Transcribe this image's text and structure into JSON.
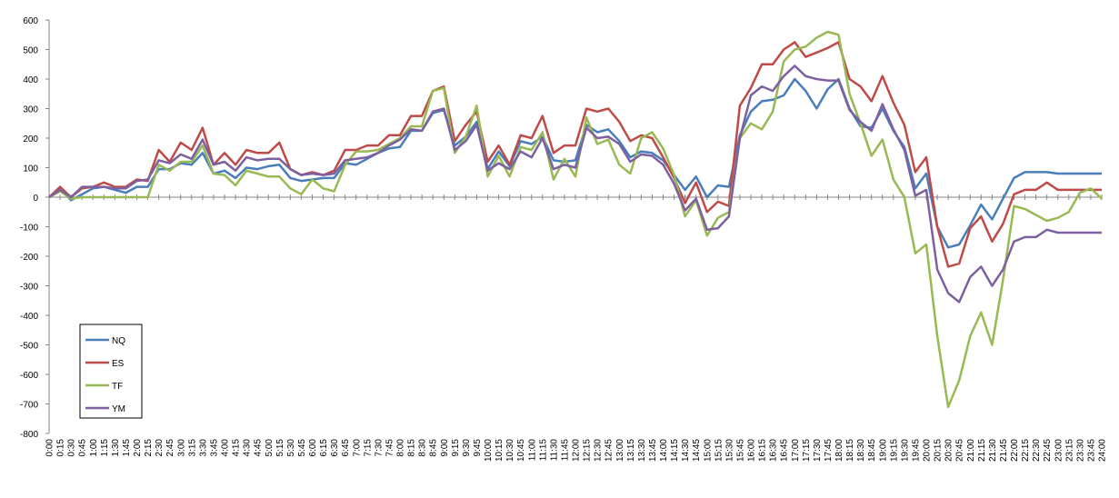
{
  "chart_data": {
    "type": "line",
    "categories": [
      "0:00",
      "0:15",
      "0:30",
      "0:45",
      "1:00",
      "1:15",
      "1:30",
      "1:45",
      "2:00",
      "2:15",
      "2:30",
      "2:45",
      "3:00",
      "3:15",
      "3:30",
      "3:45",
      "4:00",
      "4:15",
      "4:30",
      "4:45",
      "5:00",
      "5:15",
      "5:30",
      "5:45",
      "6:00",
      "6:15",
      "6:30",
      "6:45",
      "7:00",
      "7:15",
      "7:30",
      "7:45",
      "8:00",
      "8:15",
      "8:30",
      "8:45",
      "9:00",
      "9:15",
      "9:30",
      "9:45",
      "10:00",
      "10:15",
      "10:30",
      "10:45",
      "11:00",
      "11:15",
      "11:30",
      "11:45",
      "12:00",
      "12:15",
      "12:30",
      "12:45",
      "13:00",
      "13:15",
      "13:30",
      "13:45",
      "14:00",
      "14:15",
      "14:30",
      "14:45",
      "15:00",
      "15:15",
      "15:30",
      "15:45",
      "16:00",
      "16:15",
      "16:30",
      "16:45",
      "17:00",
      "17:15",
      "17:30",
      "17:45",
      "18:00",
      "18:15",
      "18:30",
      "18:45",
      "19:00",
      "19:15",
      "19:30",
      "19:45",
      "20:00",
      "20:15",
      "20:30",
      "20:45",
      "21:00",
      "21:15",
      "21:30",
      "21:45",
      "22:00",
      "22:15",
      "22:30",
      "22:45",
      "23:00",
      "23:15",
      "23:30",
      "23:45",
      "24:00"
    ],
    "series": [
      {
        "name": "NQ",
        "color": "#4a7ebb",
        "values": [
          0,
          30,
          -10,
          10,
          30,
          35,
          25,
          15,
          35,
          35,
          95,
          95,
          115,
          110,
          150,
          80,
          90,
          65,
          100,
          95,
          105,
          110,
          65,
          55,
          60,
          65,
          65,
          115,
          110,
          130,
          150,
          165,
          170,
          225,
          225,
          285,
          295,
          175,
          205,
          255,
          95,
          155,
          105,
          190,
          180,
          205,
          125,
          120,
          125,
          245,
          220,
          230,
          190,
          135,
          155,
          150,
          125,
          75,
          25,
          70,
          0,
          40,
          35,
          210,
          290,
          325,
          330,
          345,
          400,
          360,
          300,
          365,
          400,
          300,
          240,
          235,
          300,
          225,
          170,
          30,
          80,
          -100,
          -170,
          -160,
          -95,
          -25,
          -75,
          -5,
          65,
          85,
          85,
          85,
          80,
          80,
          80,
          80,
          80
        ]
      },
      {
        "name": "ES",
        "color": "#be4b48",
        "values": [
          0,
          35,
          0,
          30,
          35,
          50,
          35,
          35,
          60,
          55,
          160,
          120,
          185,
          160,
          235,
          110,
          150,
          110,
          160,
          150,
          150,
          185,
          95,
          75,
          85,
          75,
          90,
          160,
          160,
          175,
          175,
          210,
          210,
          275,
          275,
          360,
          375,
          190,
          245,
          290,
          120,
          175,
          110,
          210,
          200,
          275,
          150,
          175,
          175,
          300,
          290,
          300,
          255,
          190,
          210,
          200,
          135,
          65,
          -20,
          50,
          -50,
          -15,
          -30,
          310,
          370,
          450,
          450,
          500,
          525,
          475,
          490,
          505,
          525,
          400,
          375,
          325,
          410,
          320,
          245,
          85,
          135,
          -100,
          -235,
          -225,
          -105,
          -65,
          -150,
          -90,
          10,
          25,
          25,
          50,
          25,
          25,
          25,
          25,
          25
        ]
      },
      {
        "name": "TF",
        "color": "#98b954",
        "values": [
          0,
          20,
          -5,
          0,
          0,
          0,
          0,
          0,
          0,
          0,
          110,
          90,
          120,
          120,
          175,
          80,
          75,
          40,
          90,
          80,
          70,
          70,
          30,
          10,
          60,
          30,
          20,
          110,
          155,
          155,
          160,
          180,
          200,
          240,
          240,
          360,
          370,
          150,
          205,
          310,
          70,
          140,
          70,
          170,
          160,
          220,
          60,
          130,
          70,
          270,
          180,
          195,
          110,
          80,
          200,
          220,
          165,
          75,
          -65,
          -10,
          -130,
          -70,
          -50,
          200,
          250,
          230,
          290,
          460,
          500,
          510,
          540,
          560,
          550,
          350,
          250,
          140,
          195,
          60,
          0,
          -190,
          -160,
          -470,
          -710,
          -620,
          -470,
          -390,
          -500,
          -280,
          -30,
          -40,
          -60,
          -80,
          -70,
          -50,
          15,
          30,
          -5
        ]
      },
      {
        "name": "YM",
        "color": "#7d60a0",
        "values": [
          0,
          25,
          0,
          35,
          35,
          35,
          30,
          30,
          55,
          60,
          125,
          115,
          145,
          130,
          195,
          110,
          120,
          90,
          135,
          125,
          130,
          130,
          95,
          75,
          80,
          75,
          80,
          125,
          130,
          135,
          150,
          175,
          195,
          230,
          225,
          290,
          300,
          160,
          190,
          245,
          90,
          115,
          95,
          155,
          135,
          200,
          95,
          110,
          100,
          235,
          200,
          205,
          180,
          120,
          145,
          140,
          110,
          45,
          -45,
          -5,
          -110,
          -105,
          -65,
          200,
          345,
          375,
          360,
          410,
          445,
          410,
          400,
          395,
          395,
          295,
          255,
          225,
          315,
          230,
          160,
          5,
          25,
          -245,
          -325,
          -355,
          -270,
          -235,
          -300,
          -245,
          -150,
          -135,
          -135,
          -110,
          -120,
          -120,
          -120,
          -120,
          -120
        ]
      }
    ],
    "ylim": [
      -800,
      600
    ],
    "yticks": [
      -800,
      -700,
      -600,
      -500,
      -400,
      -300,
      -200,
      -100,
      0,
      100,
      200,
      300,
      400,
      500,
      600
    ],
    "grid": false,
    "legend": "lower-left"
  }
}
